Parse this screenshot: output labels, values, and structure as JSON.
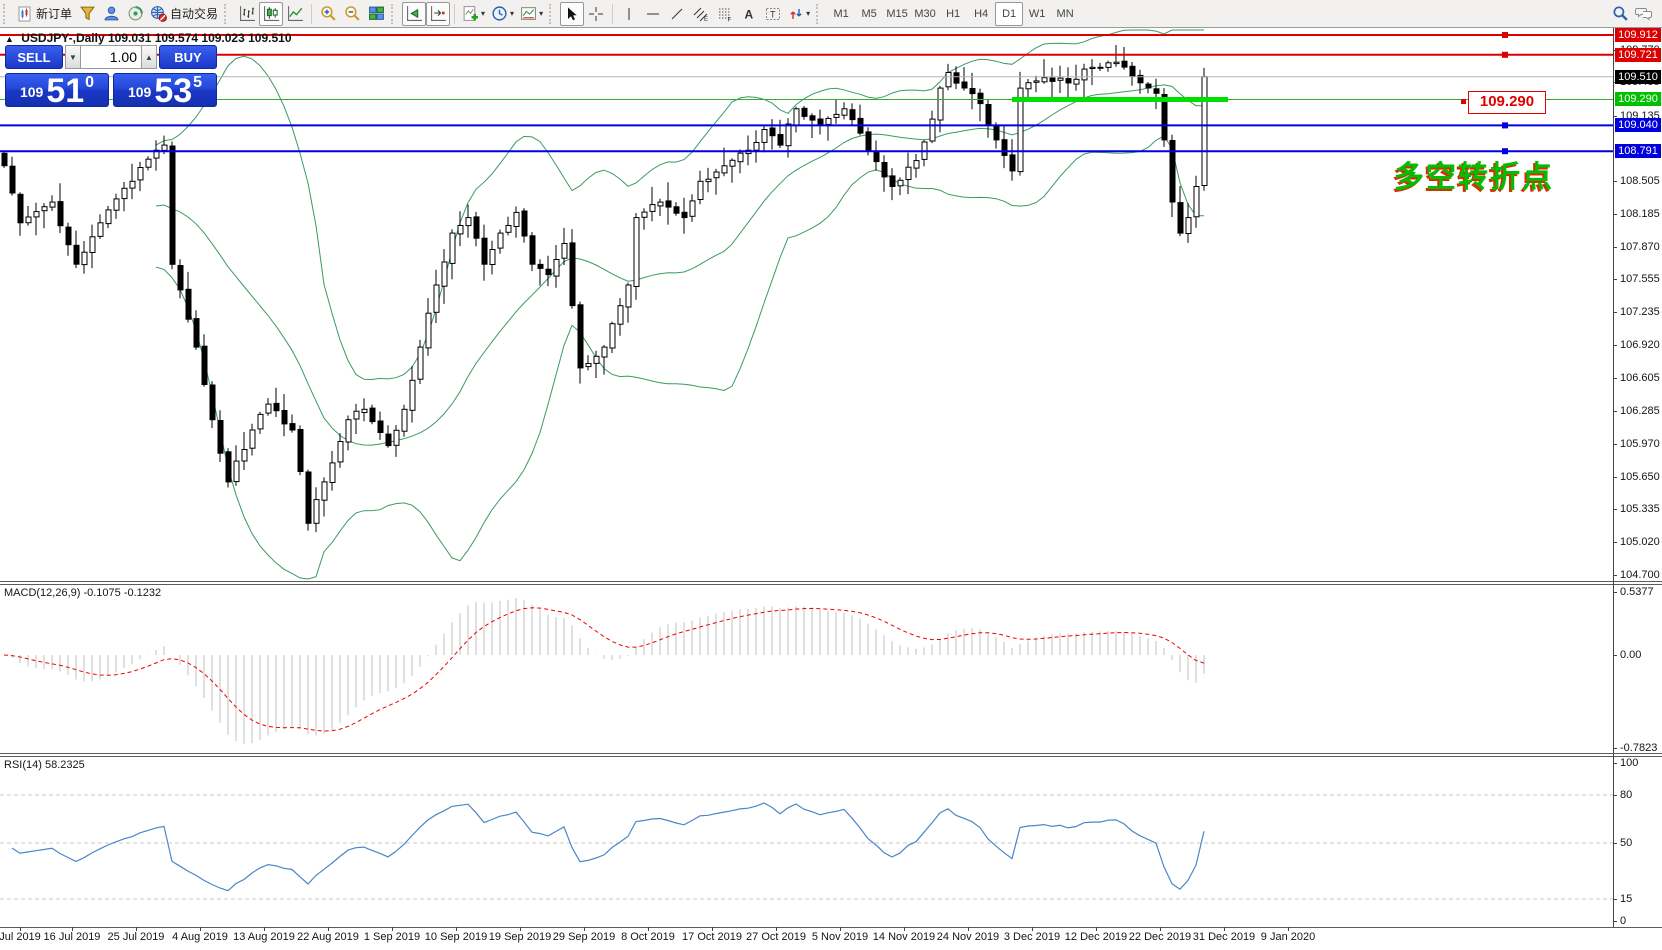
{
  "toolbar": {
    "new_order": "新订单",
    "autotrading": "自动交易",
    "timeframes": [
      "M1",
      "M5",
      "M15",
      "M30",
      "H1",
      "H4",
      "D1",
      "W1",
      "MN"
    ],
    "active_timeframe": "D1"
  },
  "chart_header": {
    "collapse_glyph": "▲",
    "symbol_period": "USDJPY-,Daily",
    "ohlc": "109.031 109.574 109.023 109.510"
  },
  "trade_panel": {
    "sell_label": "SELL",
    "buy_label": "BUY",
    "volume": "1.00",
    "spin_down_glyph": "▼",
    "spin_up_glyph": "▲",
    "sell_small": "109",
    "sell_big": "51",
    "sell_sup": "0",
    "buy_small": "109",
    "buy_big": "53",
    "buy_sup": "5"
  },
  "annotations": {
    "price_box": "109.290",
    "pivot_text": "多空转折点"
  },
  "indicators": {
    "macd_label": "MACD(12,26,9) -0.1075 -0.1232",
    "rsi_label": "RSI(14) 58.2325"
  },
  "axes": {
    "price_ticks": [
      "109.770",
      "109.455",
      "109.135",
      "108.505",
      "108.185",
      "107.870",
      "107.555",
      "107.235",
      "106.920",
      "106.605",
      "106.285",
      "105.970",
      "105.650",
      "105.335",
      "105.020",
      "104.700"
    ],
    "price_badges": [
      {
        "text": "109.912",
        "bg": "#dd0000",
        "price": 109.912
      },
      {
        "text": "109.721",
        "bg": "#dd0000",
        "price": 109.721
      },
      {
        "text": "109.510",
        "bg": "#000000",
        "price": 109.51
      },
      {
        "text": "109.290",
        "bg": "#00c000",
        "price": 109.29
      },
      {
        "text": "109.040",
        "bg": "#0000dd",
        "price": 109.04
      },
      {
        "text": "108.791",
        "bg": "#0000dd",
        "price": 108.791
      }
    ],
    "macd_ticks": [
      "0.5377",
      "0.00",
      "-0.7823"
    ],
    "rsi_ticks": [
      "100",
      "80",
      "50",
      "15",
      "0"
    ],
    "dates": [
      "Jul 2019",
      "16 Jul 2019",
      "25 Jul 2019",
      "4 Aug 2019",
      "13 Aug 2019",
      "22 Aug 2019",
      "1 Sep 2019",
      "10 Sep 2019",
      "19 Sep 2019",
      "29 Sep 2019",
      "8 Oct 2019",
      "17 Oct 2019",
      "27 Oct 2019",
      "5 Nov 2019",
      "14 Nov 2019",
      "24 Nov 2019",
      "3 Dec 2019",
      "12 Dec 2019",
      "22 Dec 2019",
      "31 Dec 2019",
      "9 Jan 2020"
    ]
  },
  "levels": [
    {
      "price": 109.912,
      "color": "#dd0000",
      "width": 2,
      "handle": true
    },
    {
      "price": 109.721,
      "color": "#dd0000",
      "width": 2,
      "handle": true
    },
    {
      "price": 109.51,
      "color": "#b4b4b4",
      "width": 1,
      "handle": false
    },
    {
      "price": 109.29,
      "color": "#2fae2f",
      "width": 1,
      "handle": true
    },
    {
      "price": 109.04,
      "color": "#0000e0",
      "width": 2,
      "handle": true
    },
    {
      "price": 108.791,
      "color": "#0000e0",
      "width": 2,
      "handle": true
    }
  ],
  "colors": {
    "bull_candle": "#ffffff",
    "bear_candle": "#000000",
    "candle_outline": "#000000",
    "bollinger": "#3c9a5f",
    "macd_hist": "#c0c0c0",
    "macd_signal": "#ee0000",
    "rsi_line": "#4a86c8",
    "rsi_levels_dash": "#c8c8c8",
    "highlight_green": "#00de00",
    "trade_panel_blue": "#1b38c8",
    "annotation_green": "#00be00",
    "annotation_red_shadow": "#d63000"
  },
  "chart_data": {
    "type": "candlestick",
    "symbol": "USDJPY-",
    "timeframe": "Daily",
    "ohlc_current": {
      "open": 109.031,
      "high": 109.574,
      "low": 109.023,
      "close": 109.51
    },
    "bars": 151,
    "close_waypoints": [
      [
        0,
        108.65
      ],
      [
        2,
        108.1
      ],
      [
        6,
        108.3
      ],
      [
        9,
        107.7
      ],
      [
        12,
        108.1
      ],
      [
        16,
        108.5
      ],
      [
        19,
        108.8
      ],
      [
        20,
        108.85
      ],
      [
        21,
        107.7
      ],
      [
        24,
        106.9
      ],
      [
        26,
        106.2
      ],
      [
        28,
        105.6
      ],
      [
        31,
        106.1
      ],
      [
        33,
        106.35
      ],
      [
        36,
        106.1
      ],
      [
        37,
        105.7
      ],
      [
        38,
        105.2
      ],
      [
        40,
        105.6
      ],
      [
        43,
        106.2
      ],
      [
        45,
        106.3
      ],
      [
        48,
        105.95
      ],
      [
        50,
        106.3
      ],
      [
        52,
        106.9
      ],
      [
        54,
        107.5
      ],
      [
        56,
        108.0
      ],
      [
        58,
        108.15
      ],
      [
        60,
        107.7
      ],
      [
        62,
        108.0
      ],
      [
        64,
        108.2
      ],
      [
        66,
        107.7
      ],
      [
        68,
        107.6
      ],
      [
        70,
        107.9
      ],
      [
        71,
        107.3
      ],
      [
        72,
        106.7
      ],
      [
        75,
        106.9
      ],
      [
        77,
        107.3
      ],
      [
        78,
        107.5
      ],
      [
        79,
        108.15
      ],
      [
        82,
        108.3
      ],
      [
        85,
        108.15
      ],
      [
        87,
        108.5
      ],
      [
        90,
        108.65
      ],
      [
        93,
        108.8
      ],
      [
        95,
        109.0
      ],
      [
        97,
        108.85
      ],
      [
        99,
        109.2
      ],
      [
        102,
        109.05
      ],
      [
        105,
        109.2
      ],
      [
        108,
        108.8
      ],
      [
        111,
        108.45
      ],
      [
        114,
        108.7
      ],
      [
        116,
        109.1
      ],
      [
        117,
        109.4
      ],
      [
        118,
        109.55
      ],
      [
        120,
        109.4
      ],
      [
        122,
        109.25
      ],
      [
        124,
        108.9
      ],
      [
        126,
        108.6
      ],
      [
        127,
        109.4
      ],
      [
        130,
        109.5
      ],
      [
        133,
        109.45
      ],
      [
        136,
        109.6
      ],
      [
        139,
        109.65
      ],
      [
        142,
        109.45
      ],
      [
        144,
        109.35
      ],
      [
        145,
        108.9
      ],
      [
        146,
        108.3
      ],
      [
        147,
        108.0
      ],
      [
        148,
        108.15
      ],
      [
        149,
        108.45
      ],
      [
        150,
        109.51
      ]
    ],
    "bollinger": {
      "period": 20,
      "deviation": 2
    },
    "macd": {
      "fast": 12,
      "slow": 26,
      "signal": 9,
      "current_macd": -0.1075,
      "current_signal": -0.1232,
      "axis_max": 0.5377,
      "axis_min": -0.7823
    },
    "rsi": {
      "period": 14,
      "current": 58.2325,
      "levels": [
        80,
        50,
        15
      ],
      "range": [
        0,
        100
      ]
    },
    "key_levels": [
      109.912,
      109.721,
      109.51,
      109.29,
      109.04,
      108.791
    ],
    "highlight_segment": {
      "price": 109.29,
      "from_bar": 126,
      "to_bar": 153
    }
  }
}
